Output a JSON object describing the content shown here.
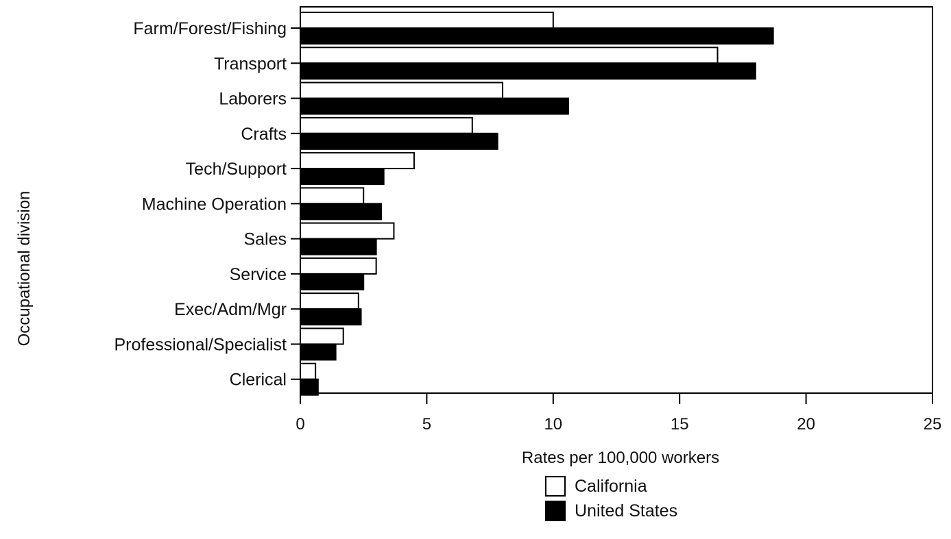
{
  "chart_data": {
    "type": "bar",
    "orientation": "horizontal",
    "categories": [
      "Farm/Forest/Fishing",
      "Transport",
      "Laborers",
      "Crafts",
      "Tech/Support",
      "Machine Operation",
      "Sales",
      "Service",
      "Exec/Adm/Mgr",
      "Professional/Specialist",
      "Clerical"
    ],
    "series": [
      {
        "name": "California",
        "color": "#ffffff",
        "values": [
          10.0,
          16.5,
          8.0,
          6.8,
          4.5,
          2.5,
          3.7,
          3.0,
          2.3,
          1.7,
          0.6
        ]
      },
      {
        "name": "United States",
        "color": "#000000",
        "values": [
          18.7,
          18.0,
          10.6,
          7.8,
          3.3,
          3.2,
          3.0,
          2.5,
          2.4,
          1.4,
          0.7
        ]
      }
    ],
    "xlabel": "Rates per 100,000 workers",
    "ylabel": "Occupational division",
    "xlim": [
      0,
      25
    ],
    "xticks": [
      "0",
      "5",
      "10",
      "15",
      "20",
      "25"
    ],
    "grid": false,
    "legend_position": "bottom"
  }
}
